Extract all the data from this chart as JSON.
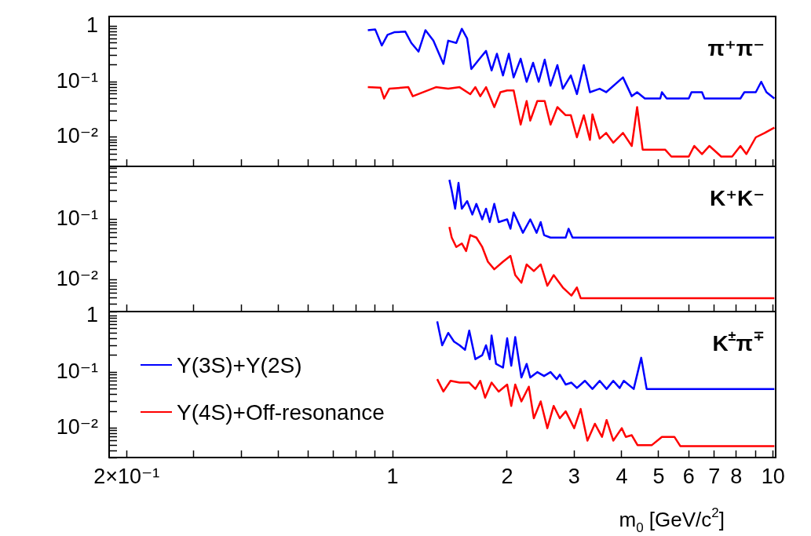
{
  "chart_data": [
    {
      "type": "line",
      "log": "xy",
      "xlim": [
        0.18,
        10.15
      ],
      "ylim": [
        0.003,
        1.5
      ],
      "tick_labels": "y",
      "xticks": [
        {
          "value": 0.2,
          "label": null
        },
        {
          "value": 0.3,
          "label": null
        },
        {
          "value": 0.4,
          "label": null
        },
        {
          "value": 0.5,
          "label": null
        },
        {
          "value": 0.6,
          "label": null
        },
        {
          "value": 0.7,
          "label": null
        },
        {
          "value": 0.8,
          "label": null
        },
        {
          "value": 0.9,
          "label": null
        },
        {
          "value": 1,
          "label": null
        },
        {
          "value": 2,
          "label": null
        },
        {
          "value": 3,
          "label": null
        },
        {
          "value": 4,
          "label": null
        },
        {
          "value": 5,
          "label": null
        },
        {
          "value": 6,
          "label": null
        },
        {
          "value": 7,
          "label": null
        },
        {
          "value": 8,
          "label": null
        },
        {
          "value": 9,
          "label": null
        },
        {
          "value": 10,
          "label": null
        }
      ],
      "yticks": [
        {
          "value": 0.003,
          "label": null
        },
        {
          "value": 0.004,
          "label": null
        },
        {
          "value": 0.005,
          "label": null
        },
        {
          "value": 0.006,
          "label": null
        },
        {
          "value": 0.007,
          "label": null
        },
        {
          "value": 0.008,
          "label": null
        },
        {
          "value": 0.009,
          "label": null
        },
        {
          "value": 0.01,
          "label": "10⁻²"
        },
        {
          "value": 0.02,
          "label": null
        },
        {
          "value": 0.03,
          "label": null
        },
        {
          "value": 0.04,
          "label": null
        },
        {
          "value": 0.05,
          "label": null
        },
        {
          "value": 0.06,
          "label": null
        },
        {
          "value": 0.07,
          "label": null
        },
        {
          "value": 0.08,
          "label": null
        },
        {
          "value": 0.09,
          "label": null
        },
        {
          "value": 0.1,
          "label": "10⁻¹"
        },
        {
          "value": 0.2,
          "label": null
        },
        {
          "value": 0.3,
          "label": null
        },
        {
          "value": 0.4,
          "label": null
        },
        {
          "value": 0.5,
          "label": null
        },
        {
          "value": 0.6,
          "label": null
        },
        {
          "value": 0.7,
          "label": null
        },
        {
          "value": 0.8,
          "label": null
        },
        {
          "value": 0.9,
          "label": null
        },
        1
      ],
      "annotations": [
        "π⁺π⁻"
      ],
      "series": [
        {
          "color": "#0000ff",
          "x": [
            0.861,
            0.9,
            0.937,
            0.97,
            1.01,
            1.08,
            1.12,
            1.17,
            1.22,
            1.28,
            1.36,
            1.4,
            1.47,
            1.52,
            1.57,
            1.61,
            1.7,
            1.76,
            1.82,
            1.88,
            1.95,
            2.02,
            2.08,
            2.17,
            2.25,
            2.34,
            2.42,
            2.51,
            2.6,
            2.71,
            2.8,
            2.94,
            3.05,
            3.18,
            3.3,
            3.5,
            3.64,
            4.03,
            4.25,
            4.39,
            4.6,
            5.05,
            5.1,
            5.25,
            6.0,
            6.1,
            6.5,
            6.6,
            8.2,
            8.4,
            9.0,
            9.3,
            9.6,
            10.07
          ],
          "values": [
            0.85,
            0.88,
            0.45,
            0.7,
            0.78,
            0.8,
            0.5,
            0.35,
            0.85,
            0.55,
            0.21,
            0.55,
            0.5,
            0.9,
            0.6,
            0.17,
            0.27,
            0.36,
            0.16,
            0.32,
            0.13,
            0.32,
            0.12,
            0.26,
            0.1,
            0.22,
            0.1,
            0.25,
            0.085,
            0.2,
            0.075,
            0.13,
            0.06,
            0.2,
            0.065,
            0.075,
            0.065,
            0.12,
            0.055,
            0.065,
            0.05,
            0.05,
            0.065,
            0.05,
            0.05,
            0.065,
            0.065,
            0.05,
            0.05,
            0.065,
            0.065,
            0.1,
            0.065,
            0.05
          ]
        },
        {
          "color": "#ff0000",
          "x": [
            0.861,
            0.93,
            0.95,
            0.98,
            1.1,
            1.13,
            1.3,
            1.4,
            1.5,
            1.6,
            1.65,
            1.7,
            1.76,
            1.85,
            1.92,
            2.0,
            2.08,
            2.17,
            2.25,
            2.3,
            2.4,
            2.51,
            2.6,
            2.71,
            2.85,
            2.94,
            3.05,
            3.18,
            3.3,
            3.35,
            3.5,
            3.64,
            3.8,
            4.03,
            4.25,
            4.39,
            4.54,
            5.0,
            5.2,
            5.4,
            6.0,
            6.2,
            6.5,
            6.8,
            7.3,
            7.8,
            8.2,
            8.5,
            9.0,
            9.5,
            10.07
          ],
          "values": [
            0.08,
            0.078,
            0.05,
            0.075,
            0.08,
            0.055,
            0.08,
            0.075,
            0.08,
            0.06,
            0.08,
            0.055,
            0.08,
            0.035,
            0.065,
            0.07,
            0.07,
            0.017,
            0.045,
            0.02,
            0.045,
            0.045,
            0.017,
            0.035,
            0.025,
            0.025,
            0.01,
            0.025,
            0.009,
            0.026,
            0.0095,
            0.012,
            0.008,
            0.012,
            0.007,
            0.035,
            0.006,
            0.006,
            0.006,
            0.0045,
            0.0045,
            0.007,
            0.005,
            0.007,
            0.0045,
            0.0045,
            0.007,
            0.005,
            0.01,
            0.012,
            0.015
          ]
        }
      ]
    },
    {
      "type": "line",
      "log": "xy",
      "xlim": [
        0.18,
        10.15
      ],
      "ylim": [
        0.003,
        0.75
      ],
      "tick_labels": "y",
      "xticks": [
        {
          "value": 0.2,
          "label": null
        },
        {
          "value": 0.3,
          "label": null
        },
        {
          "value": 0.4,
          "label": null
        },
        {
          "value": 0.5,
          "label": null
        },
        {
          "value": 0.6,
          "label": null
        },
        {
          "value": 0.7,
          "label": null
        },
        {
          "value": 0.8,
          "label": null
        },
        {
          "value": 0.9,
          "label": null
        },
        {
          "value": 1,
          "label": null
        },
        {
          "value": 2,
          "label": null
        },
        {
          "value": 3,
          "label": null
        },
        {
          "value": 4,
          "label": null
        },
        {
          "value": 5,
          "label": null
        },
        {
          "value": 6,
          "label": null
        },
        {
          "value": 7,
          "label": null
        },
        {
          "value": 8,
          "label": null
        },
        {
          "value": 9,
          "label": null
        },
        {
          "value": 10,
          "label": null
        }
      ],
      "yticks": [
        {
          "value": 0.003,
          "label": null
        },
        {
          "value": 0.004,
          "label": null
        },
        {
          "value": 0.005,
          "label": null
        },
        {
          "value": 0.006,
          "label": null
        },
        {
          "value": 0.007,
          "label": null
        },
        {
          "value": 0.008,
          "label": null
        },
        {
          "value": 0.009,
          "label": null
        },
        {
          "value": 0.01,
          "label": "10⁻²"
        },
        {
          "value": 0.02,
          "label": null
        },
        {
          "value": 0.03,
          "label": null
        },
        {
          "value": 0.04,
          "label": null
        },
        {
          "value": 0.05,
          "label": null
        },
        {
          "value": 0.06,
          "label": null
        },
        {
          "value": 0.07,
          "label": null
        },
        {
          "value": 0.08,
          "label": null
        },
        {
          "value": 0.09,
          "label": null
        },
        {
          "value": 0.1,
          "label": "10⁻¹"
        },
        {
          "value": 0.2,
          "label": null
        },
        {
          "value": 0.3,
          "label": null
        },
        {
          "value": 0.4,
          "label": null
        },
        {
          "value": 0.5,
          "label": null
        },
        {
          "value": 0.6,
          "label": null
        },
        {
          "value": 0.7,
          "label": null
        }
      ],
      "annotations": [
        "K⁺K⁻"
      ],
      "series": [
        {
          "color": "#0000ff",
          "x": [
            1.41,
            1.43,
            1.46,
            1.49,
            1.52,
            1.57,
            1.62,
            1.66,
            1.72,
            1.76,
            1.8,
            1.85,
            1.9,
            2.0,
            2.04,
            2.08,
            2.2,
            2.3,
            2.39,
            2.45,
            2.5,
            2.6,
            2.85,
            2.9,
            2.97,
            10.07
          ],
          "values": [
            0.45,
            0.3,
            0.15,
            0.4,
            0.15,
            0.2,
            0.12,
            0.18,
            0.1,
            0.15,
            0.09,
            0.18,
            0.09,
            0.1,
            0.07,
            0.13,
            0.06,
            0.1,
            0.06,
            0.09,
            0.055,
            0.05,
            0.05,
            0.07,
            0.05,
            0.05
          ]
        },
        {
          "color": "#ff0000",
          "x": [
            1.41,
            1.43,
            1.47,
            1.52,
            1.56,
            1.6,
            1.66,
            1.72,
            1.78,
            1.85,
            1.95,
            2.04,
            2.1,
            2.18,
            2.25,
            2.35,
            2.45,
            2.55,
            2.65,
            2.8,
            2.95,
            3.05,
            3.12,
            10.07
          ],
          "values": [
            0.075,
            0.05,
            0.035,
            0.04,
            0.03,
            0.055,
            0.05,
            0.035,
            0.02,
            0.015,
            0.02,
            0.025,
            0.012,
            0.009,
            0.018,
            0.014,
            0.018,
            0.008,
            0.012,
            0.0075,
            0.0055,
            0.0075,
            0.005,
            0.005
          ]
        }
      ]
    },
    {
      "type": "line",
      "log": "xy",
      "xlim": [
        0.18,
        10.15
      ],
      "ylim": [
        0.003,
        1.2
      ],
      "xlabel": "m$_{0}$ [GeV/c$^{2}$]",
      "legend": "left",
      "xticks": [
        {
          "value": 0.2,
          "label": "2×10⁻¹"
        },
        {
          "value": 0.3,
          "label": null
        },
        {
          "value": 0.4,
          "label": null
        },
        {
          "value": 0.5,
          "label": null
        },
        {
          "value": 0.6,
          "label": null
        },
        {
          "value": 0.7,
          "label": null
        },
        {
          "value": 0.8,
          "label": null
        },
        {
          "value": 0.9,
          "label": null
        },
        1,
        2,
        3,
        4,
        5,
        6,
        7,
        8,
        {
          "value": 9,
          "label": null
        },
        10
      ],
      "yticks": [
        {
          "value": 0.003,
          "label": null
        },
        {
          "value": 0.004,
          "label": null
        },
        {
          "value": 0.005,
          "label": null
        },
        {
          "value": 0.006,
          "label": null
        },
        {
          "value": 0.007,
          "label": null
        },
        {
          "value": 0.008,
          "label": null
        },
        {
          "value": 0.009,
          "label": null
        },
        {
          "value": 0.01,
          "label": "10⁻²"
        },
        {
          "value": 0.02,
          "label": null
        },
        {
          "value": 0.03,
          "label": null
        },
        {
          "value": 0.04,
          "label": null
        },
        {
          "value": 0.05,
          "label": null
        },
        {
          "value": 0.06,
          "label": null
        },
        {
          "value": 0.07,
          "label": null
        },
        {
          "value": 0.08,
          "label": null
        },
        {
          "value": 0.09,
          "label": null
        },
        {
          "value": 0.1,
          "label": "10⁻¹"
        },
        {
          "value": 0.2,
          "label": null
        },
        {
          "value": 0.3,
          "label": null
        },
        {
          "value": 0.4,
          "label": null
        },
        {
          "value": 0.5,
          "label": null
        },
        {
          "value": 0.6,
          "label": null
        },
        {
          "value": 0.7,
          "label": null
        },
        {
          "value": 0.8,
          "label": null
        },
        {
          "value": 0.9,
          "label": null
        },
        1
      ],
      "annotations": [
        "K$^{±}$π$^{∓}$"
      ],
      "series": [
        {
          "name": "Υ(3S)+Υ(2S)",
          "color": "#0000ff",
          "x": [
            1.31,
            1.35,
            1.4,
            1.45,
            1.5,
            1.55,
            1.59,
            1.65,
            1.72,
            1.76,
            1.8,
            1.82,
            1.87,
            1.95,
            2.0,
            2.05,
            2.1,
            2.18,
            2.25,
            2.3,
            2.4,
            2.5,
            2.6,
            2.7,
            2.75,
            2.85,
            2.95,
            3.05,
            3.2,
            3.35,
            3.5,
            3.65,
            3.8,
            3.95,
            4.05,
            4.3,
            4.5,
            4.65,
            10.07
          ],
          "values": [
            0.8,
            0.3,
            0.5,
            0.35,
            0.3,
            0.25,
            0.55,
            0.17,
            0.2,
            0.3,
            0.17,
            0.45,
            0.14,
            0.12,
            0.4,
            0.13,
            0.42,
            0.08,
            0.14,
            0.08,
            0.1,
            0.085,
            0.1,
            0.075,
            0.09,
            0.06,
            0.065,
            0.052,
            0.07,
            0.05,
            0.07,
            0.05,
            0.07,
            0.052,
            0.07,
            0.05,
            0.18,
            0.05,
            0.05
          ]
        },
        {
          "name": "Υ(4S)+Off-resonance",
          "color": "#ff0000",
          "x": [
            1.31,
            1.36,
            1.42,
            1.5,
            1.59,
            1.65,
            1.7,
            1.75,
            1.82,
            1.9,
            2.0,
            2.05,
            2.1,
            2.18,
            2.28,
            2.35,
            2.45,
            2.55,
            2.65,
            2.75,
            2.85,
            3.0,
            3.12,
            3.25,
            3.4,
            3.55,
            3.65,
            3.8,
            4.0,
            4.1,
            4.25,
            4.4,
            4.8,
            5.1,
            5.5,
            5.7,
            10.07
          ],
          "values": [
            0.075,
            0.045,
            0.07,
            0.065,
            0.065,
            0.05,
            0.07,
            0.035,
            0.065,
            0.045,
            0.06,
            0.025,
            0.06,
            0.03,
            0.055,
            0.015,
            0.03,
            0.01,
            0.025,
            0.015,
            0.02,
            0.01,
            0.022,
            0.006,
            0.012,
            0.007,
            0.014,
            0.006,
            0.01,
            0.007,
            0.0075,
            0.005,
            0.005,
            0.007,
            0.007,
            0.0048,
            0.0048
          ]
        }
      ]
    }
  ]
}
